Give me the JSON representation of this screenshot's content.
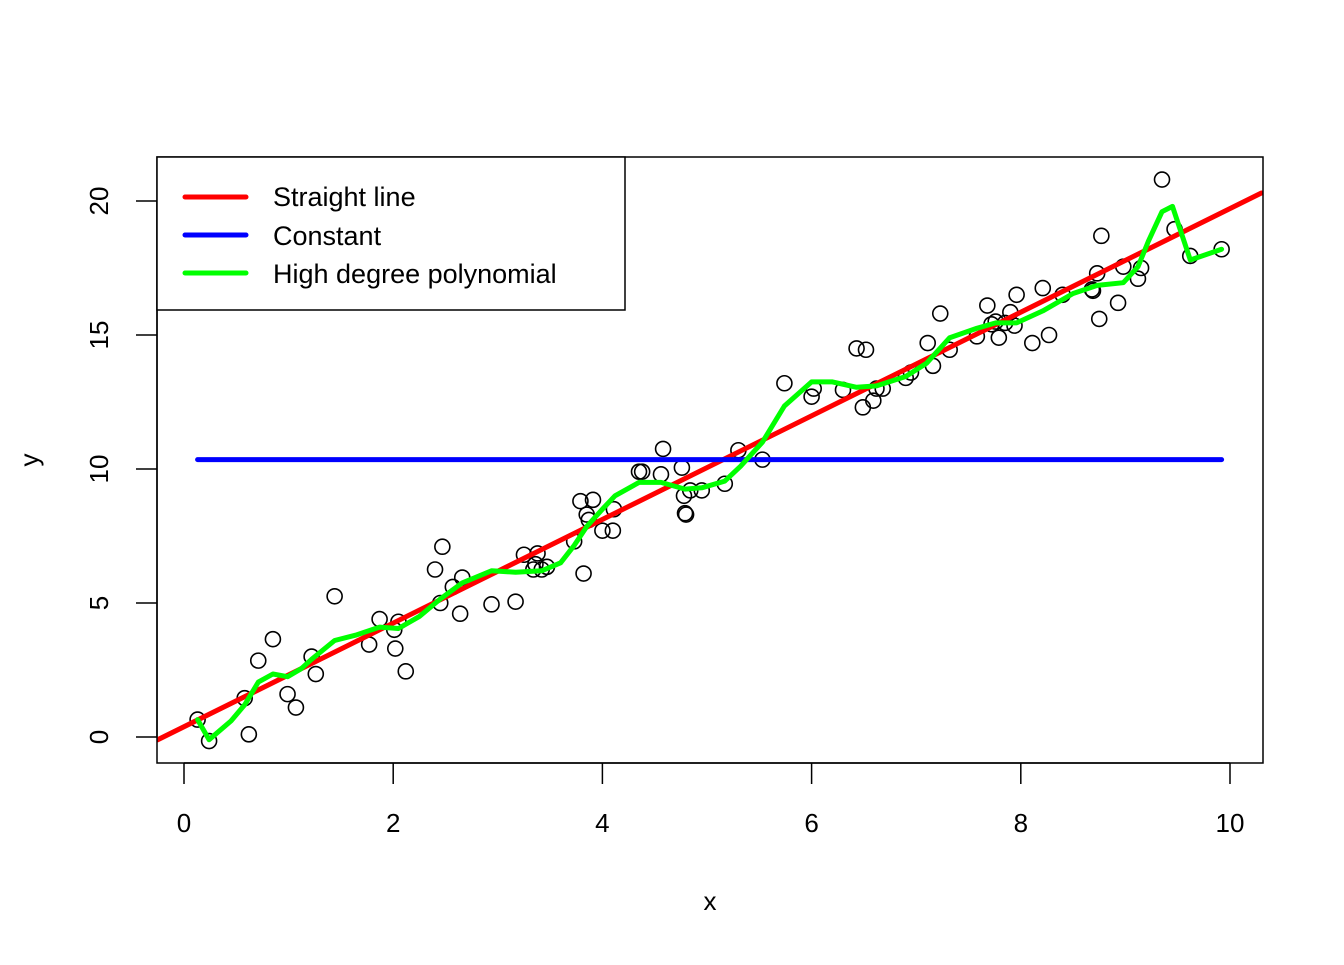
{
  "chart_data": {
    "type": "scatter",
    "title": "",
    "xlabel": "x",
    "ylabel": "y",
    "xlim": [
      -0.25,
      10.3
    ],
    "ylim": [
      -1,
      21.7
    ],
    "xticks": [
      0,
      2,
      4,
      6,
      8,
      10
    ],
    "yticks": [
      0,
      5,
      10,
      15,
      20
    ],
    "grid": false,
    "legend_position": "topleft",
    "legend": [
      {
        "label": "Straight line",
        "color": "#ff0000"
      },
      {
        "label": "Constant",
        "color": "#0000ff"
      },
      {
        "label": "High degree polynomial",
        "color": "#00ff00"
      }
    ],
    "points": {
      "x": [
        0.13,
        0.24,
        0.58,
        0.62,
        0.71,
        0.85,
        0.99,
        1.07,
        1.22,
        1.26,
        1.44,
        1.77,
        1.87,
        2.01,
        2.02,
        2.05,
        2.12,
        2.4,
        2.45,
        2.47,
        2.57,
        2.64,
        2.66,
        2.94,
        3.17,
        3.25,
        3.34,
        3.36,
        3.38,
        3.42,
        3.47,
        3.73,
        3.79,
        3.82,
        3.85,
        3.87,
        3.91,
        4.0,
        4.1,
        4.11,
        4.35,
        4.38,
        4.56,
        4.58,
        4.76,
        4.78,
        4.79,
        4.8,
        4.84,
        4.95,
        5.17,
        5.3,
        5.53,
        5.74,
        6.0,
        6.02,
        6.3,
        6.43,
        6.49,
        6.52,
        6.59,
        6.62,
        6.68,
        6.9,
        6.95,
        7.11,
        7.16,
        7.23,
        7.32,
        7.58,
        7.68,
        7.72,
        7.76,
        7.79,
        7.85,
        7.9,
        7.94,
        7.96,
        8.11,
        8.21,
        8.27,
        8.4,
        8.68,
        8.69,
        8.73,
        8.75,
        8.77,
        8.93,
        8.98,
        9.12,
        9.15,
        9.35,
        9.47,
        9.62,
        9.92
      ],
      "y": [
        0.65,
        -0.15,
        1.45,
        0.1,
        2.85,
        3.65,
        1.6,
        1.1,
        3.0,
        2.35,
        5.25,
        3.45,
        4.4,
        4.0,
        3.3,
        4.3,
        2.45,
        6.25,
        5.0,
        7.1,
        5.6,
        4.6,
        5.95,
        4.95,
        5.05,
        6.8,
        6.25,
        6.45,
        6.85,
        6.25,
        6.35,
        7.3,
        8.8,
        6.1,
        8.3,
        8.1,
        8.85,
        7.7,
        7.7,
        8.5,
        9.9,
        9.9,
        9.8,
        10.75,
        10.05,
        9.0,
        8.35,
        8.3,
        9.2,
        9.2,
        9.45,
        10.7,
        10.35,
        13.2,
        12.7,
        13.0,
        12.95,
        14.5,
        12.3,
        14.45,
        12.55,
        13.0,
        13.0,
        13.4,
        13.6,
        14.7,
        13.85,
        15.8,
        14.45,
        14.95,
        16.1,
        15.4,
        15.5,
        14.9,
        15.45,
        15.85,
        15.35,
        16.5,
        14.7,
        16.75,
        15.0,
        16.5,
        16.7,
        16.65,
        17.3,
        15.6,
        18.7,
        16.2,
        17.55,
        17.1,
        17.5,
        20.8,
        18.95,
        17.95,
        18.2
      ]
    },
    "series": [
      {
        "name": "Straight line",
        "type": "line",
        "color": "#ff0000",
        "x": [
          -0.25,
          10.3
        ],
        "y": [
          -0.1,
          20.3
        ]
      },
      {
        "name": "Constant",
        "type": "line",
        "color": "#0000ff",
        "x": [
          0.13,
          9.92
        ],
        "y": [
          10.35,
          10.35
        ]
      },
      {
        "name": "High degree polynomial",
        "type": "line",
        "color": "#00ff00",
        "x": [
          0.13,
          0.24,
          0.45,
          0.58,
          0.71,
          0.85,
          0.99,
          1.12,
          1.22,
          1.44,
          1.64,
          1.87,
          2.05,
          2.25,
          2.45,
          2.66,
          2.94,
          3.17,
          3.42,
          3.6,
          3.73,
          3.85,
          4.0,
          4.12,
          4.35,
          4.56,
          4.79,
          4.95,
          5.17,
          5.32,
          5.53,
          5.74,
          6.0,
          6.2,
          6.43,
          6.62,
          6.9,
          7.1,
          7.32,
          7.58,
          7.76,
          7.96,
          8.21,
          8.5,
          8.73,
          8.98,
          9.12,
          9.22,
          9.35,
          9.45,
          9.62,
          9.92
        ],
        "y": [
          0.65,
          -0.1,
          0.6,
          1.2,
          2.05,
          2.35,
          2.25,
          2.55,
          2.9,
          3.6,
          3.8,
          4.1,
          4.05,
          4.5,
          5.15,
          5.75,
          6.2,
          6.15,
          6.2,
          6.5,
          7.15,
          7.85,
          8.5,
          9.0,
          9.5,
          9.5,
          9.25,
          9.3,
          9.55,
          10.1,
          11.0,
          12.35,
          13.25,
          13.25,
          13.05,
          13.1,
          13.45,
          13.95,
          14.9,
          15.25,
          15.45,
          15.45,
          15.9,
          16.55,
          16.85,
          16.95,
          17.55,
          18.5,
          19.6,
          19.8,
          17.8,
          18.2
        ]
      }
    ]
  }
}
